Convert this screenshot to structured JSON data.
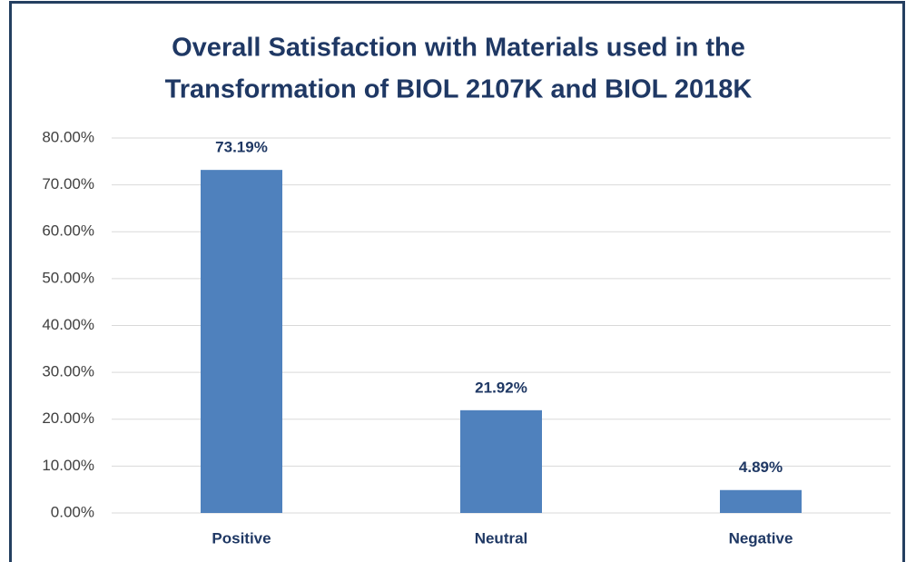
{
  "chart_data": {
    "type": "bar",
    "title": [
      "Overall Satisfaction with Materials used in the",
      "Transformation of BIOL 2107K and BIOL 2018K"
    ],
    "categories": [
      "Positive",
      "Neutral",
      "Negative"
    ],
    "values": [
      73.19,
      21.92,
      4.89
    ],
    "value_labels": [
      "73.19%",
      "21.92%",
      "4.89%"
    ],
    "color": "#4f81bd",
    "ylim": [
      0,
      80
    ],
    "yticks": [
      {
        "value": 0,
        "label": "0.00%"
      },
      {
        "value": 10,
        "label": "10.00%"
      },
      {
        "value": 20,
        "label": "20.00%"
      },
      {
        "value": 30,
        "label": "30.00%"
      },
      {
        "value": 40,
        "label": "40.00%"
      },
      {
        "value": 50,
        "label": "50.00%"
      },
      {
        "value": 60,
        "label": "60.00%"
      },
      {
        "value": 70,
        "label": "70.00%"
      },
      {
        "value": 80,
        "label": "80.00%"
      }
    ],
    "grid": true
  }
}
